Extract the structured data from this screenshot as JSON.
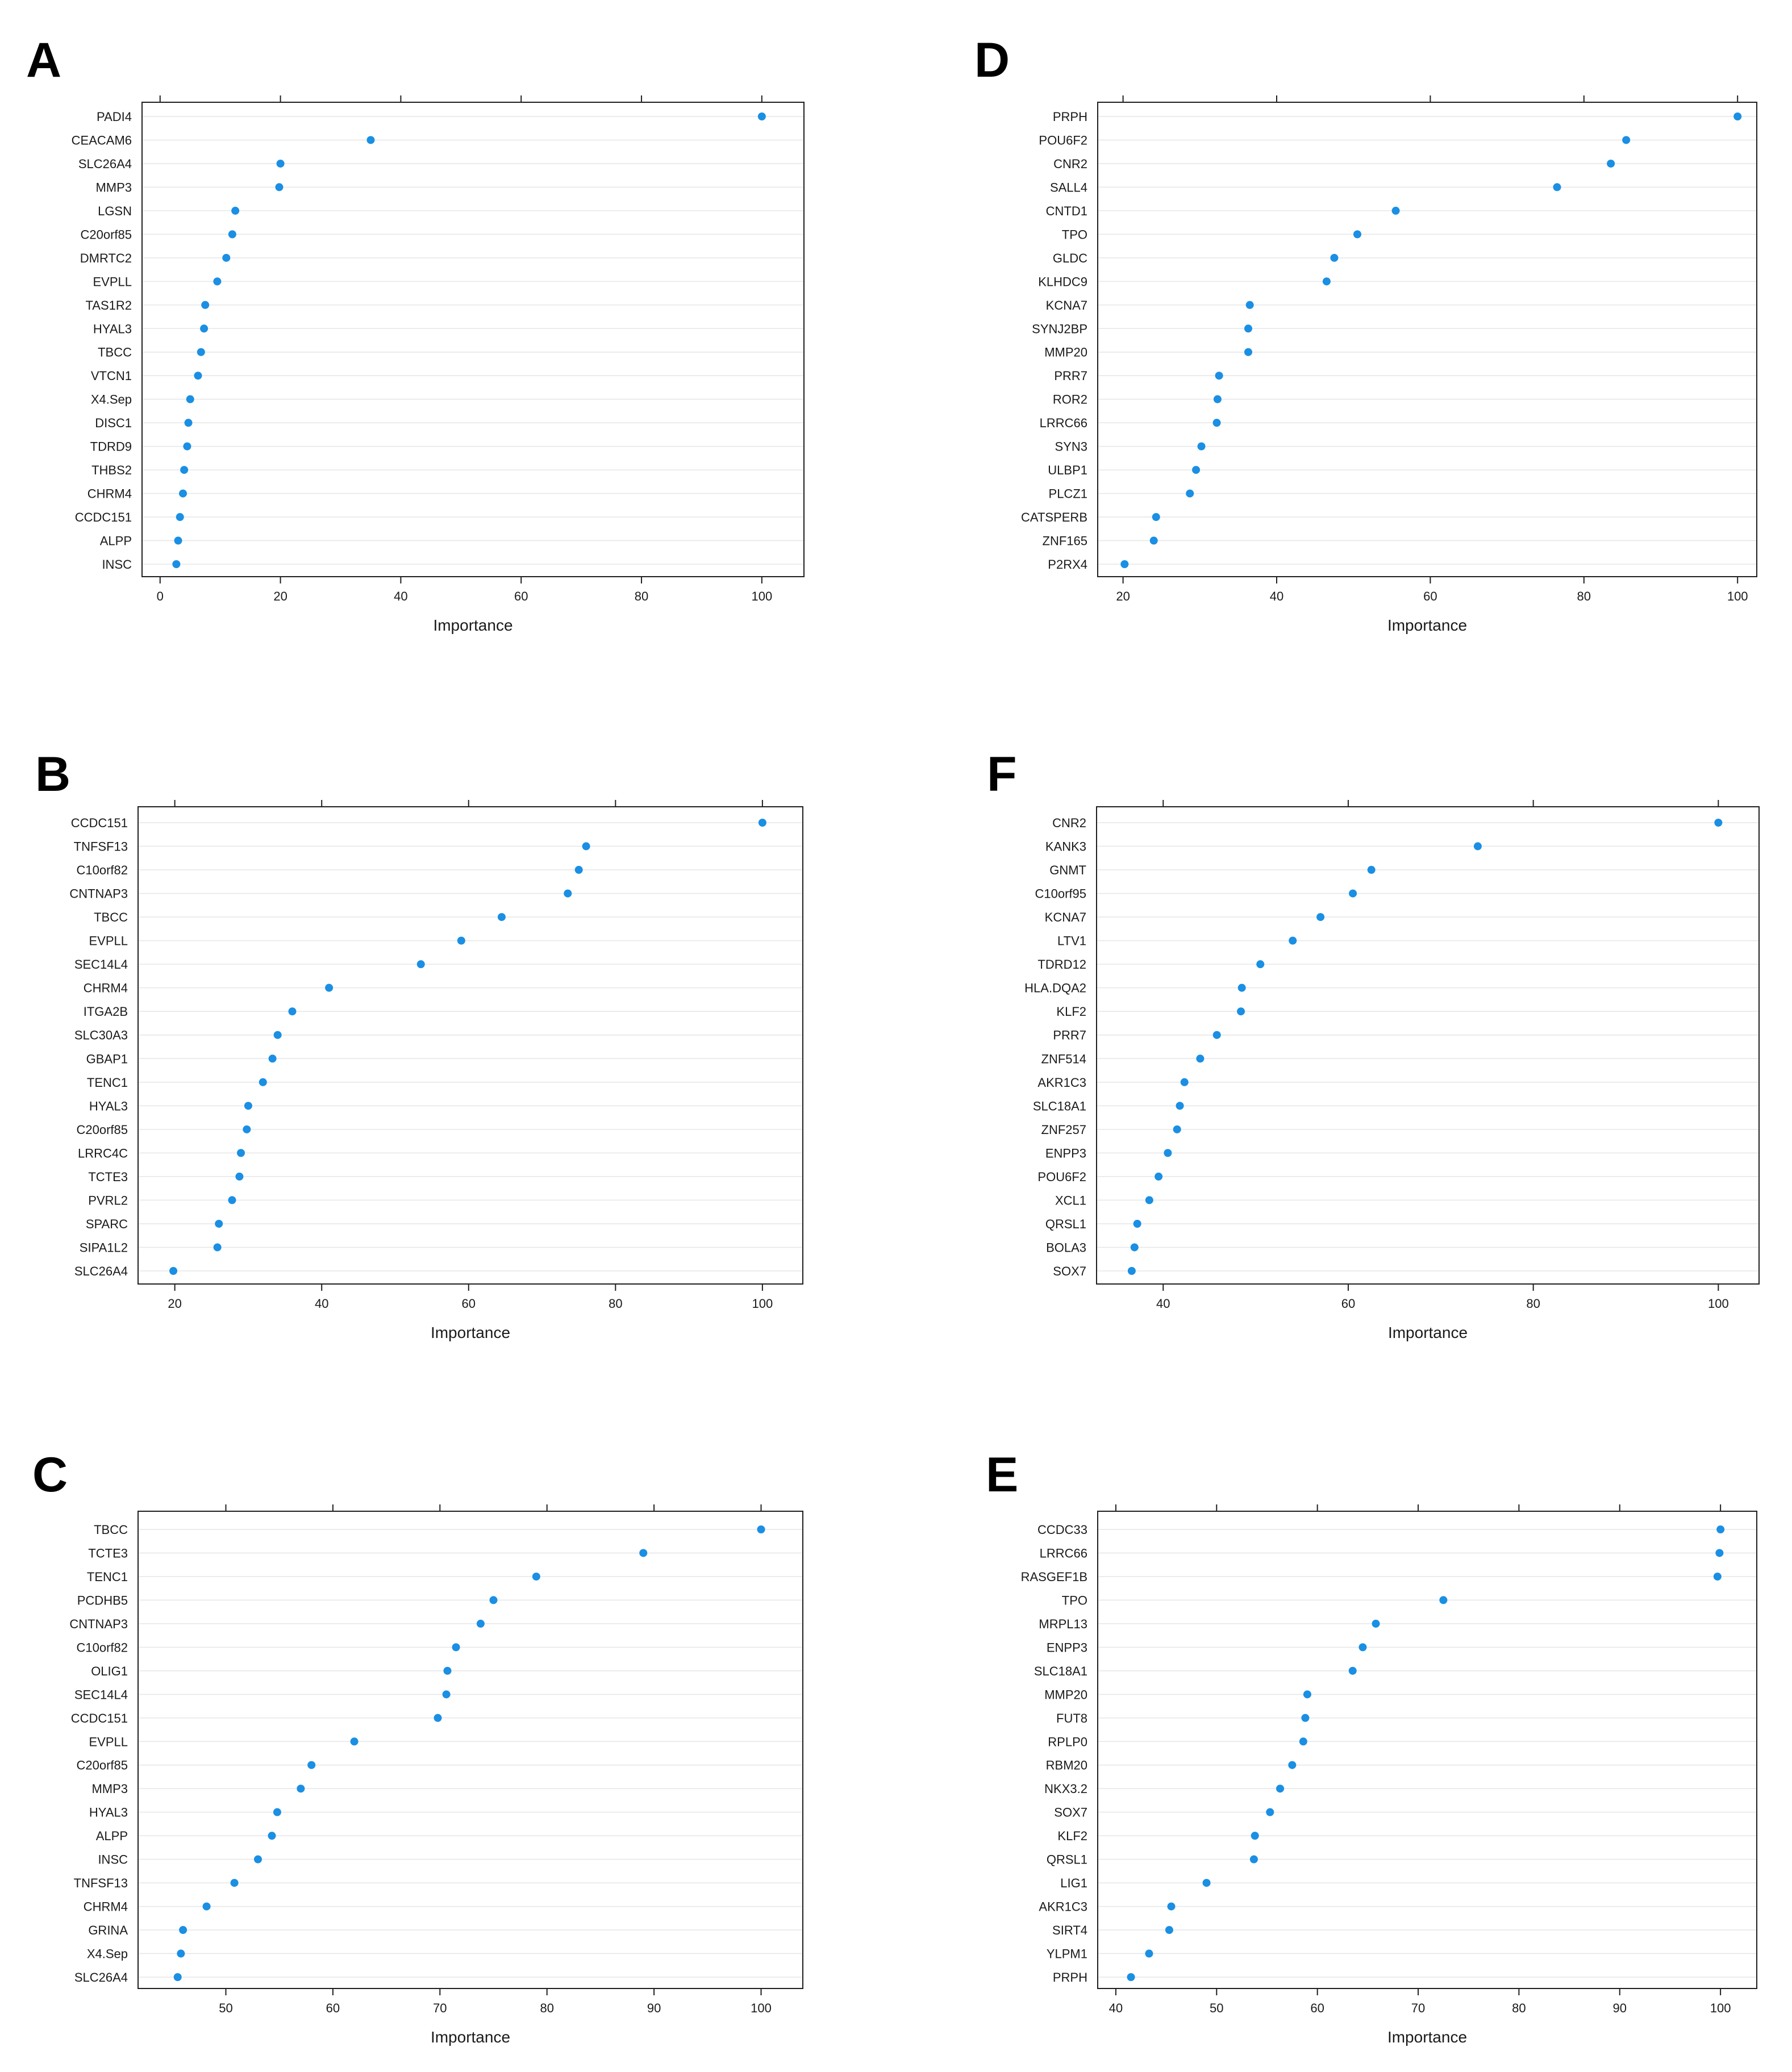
{
  "figure": {
    "dot_color": "#1a8fe3"
  },
  "chart_data": [
    {
      "panel": "A",
      "type": "scatter",
      "xlabel": "Importance",
      "xlim": [
        -3,
        107
      ],
      "xticks": [
        0,
        20,
        40,
        60,
        80,
        100
      ],
      "genes": [
        "PADI4",
        "CEACAM6",
        "SLC26A4",
        "MMP3",
        "LGSN",
        "C20orf85",
        "DMRTC2",
        "EVPLL",
        "TAS1R2",
        "HYAL3",
        "TBCC",
        "VTCN1",
        "X4.Sep",
        "DISC1",
        "TDRD9",
        "THBS2",
        "CHRM4",
        "CCDC151",
        "ALPP",
        "INSC"
      ],
      "values": [
        100,
        35,
        20,
        19.8,
        12.5,
        12,
        11,
        9.5,
        7.5,
        7.3,
        6.8,
        6.3,
        5,
        4.7,
        4.5,
        4,
        3.8,
        3.3,
        3,
        2.7
      ]
    },
    {
      "panel": "D",
      "type": "scatter",
      "xlabel": "Importance",
      "xlim": [
        16.7,
        102.5
      ],
      "xticks": [
        20,
        40,
        60,
        80,
        100
      ],
      "genes": [
        "PRPH",
        "POU6F2",
        "CNR2",
        "SALL4",
        "CNTD1",
        "TPO",
        "GLDC",
        "KLHDC9",
        "KCNA7",
        "SYNJ2BP",
        "MMP20",
        "PRR7",
        "ROR2",
        "LRRC66",
        "SYN3",
        "ULBP1",
        "PLCZ1",
        "CATSPERB",
        "ZNF165",
        "P2RX4"
      ],
      "values": [
        100,
        85.5,
        83.5,
        76.5,
        55.5,
        50.5,
        47.5,
        46.5,
        36.5,
        36.3,
        36.3,
        32.5,
        32.3,
        32.2,
        30.2,
        29.5,
        28.7,
        24.3,
        24,
        20.2
      ]
    },
    {
      "panel": "B",
      "type": "scatter",
      "xlabel": "Importance",
      "xlim": [
        15,
        105.5
      ],
      "xticks": [
        20,
        40,
        60,
        80,
        100
      ],
      "genes": [
        "CCDC151",
        "TNFSF13",
        "C10orf82",
        "CNTNAP3",
        "TBCC",
        "EVPLL",
        "SEC14L4",
        "CHRM4",
        "ITGA2B",
        "SLC30A3",
        "GBAP1",
        "TENC1",
        "HYAL3",
        "C20orf85",
        "LRRC4C",
        "TCTE3",
        "PVRL2",
        "SPARC",
        "SIPA1L2",
        "SLC26A4"
      ],
      "values": [
        100,
        76,
        75,
        73.5,
        64.5,
        59,
        53.5,
        41,
        36,
        34,
        33.3,
        32,
        30,
        29.8,
        29,
        28.8,
        27.8,
        26,
        25.8,
        19.8
      ]
    },
    {
      "panel": "F",
      "type": "scatter",
      "xlabel": "Importance",
      "xlim": [
        32.8,
        104.4
      ],
      "xticks": [
        40,
        60,
        80,
        100
      ],
      "genes": [
        "CNR2",
        "KANK3",
        "GNMT",
        "C10orf95",
        "KCNA7",
        "LTV1",
        "TDRD12",
        "HLA.DQA2",
        "KLF2",
        "PRR7",
        "ZNF514",
        "AKR1C3",
        "SLC18A1",
        "ZNF257",
        "ENPP3",
        "POU6F2",
        "XCL1",
        "QRSL1",
        "BOLA3",
        "SOX7"
      ],
      "values": [
        100,
        74,
        62.5,
        60.5,
        57,
        54,
        50.5,
        48.5,
        48.4,
        45.8,
        44,
        42.3,
        41.8,
        41.5,
        40.5,
        39.5,
        38.5,
        37.2,
        36.9,
        36.6
      ]
    },
    {
      "panel": "C",
      "type": "scatter",
      "xlabel": "Importance",
      "xlim": [
        41.8,
        103.9
      ],
      "xticks": [
        50,
        60,
        70,
        80,
        90,
        100
      ],
      "genes": [
        "TBCC",
        "TCTE3",
        "TENC1",
        "PCDHB5",
        "CNTNAP3",
        "C10orf82",
        "OLIG1",
        "SEC14L4",
        "CCDC151",
        "EVPLL",
        "C20orf85",
        "MMP3",
        "HYAL3",
        "ALPP",
        "INSC",
        "TNFSF13",
        "CHRM4",
        "GRINA",
        "X4.Sep",
        "SLC26A4"
      ],
      "values": [
        100,
        89,
        79,
        75,
        73.8,
        71.5,
        70.7,
        70.6,
        69.8,
        62,
        58,
        57,
        54.8,
        54.3,
        53,
        50.8,
        48.2,
        46,
        45.8,
        45.5
      ]
    },
    {
      "panel": "E",
      "type": "scatter",
      "xlabel": "Importance",
      "xlim": [
        38.2,
        103.6
      ],
      "xticks": [
        40,
        50,
        60,
        70,
        80,
        90,
        100
      ],
      "genes": [
        "CCDC33",
        "LRRC66",
        "RASGEF1B",
        "TPO",
        "MRPL13",
        "ENPP3",
        "SLC18A1",
        "MMP20",
        "FUT8",
        "RPLP0",
        "RBM20",
        "NKX3.2",
        "SOX7",
        "KLF2",
        "QRSL1",
        "LIG1",
        "AKR1C3",
        "SIRT4",
        "YLPM1",
        "PRPH"
      ],
      "values": [
        100,
        99.9,
        99.7,
        72.5,
        65.8,
        64.5,
        63.5,
        59,
        58.8,
        58.6,
        57.5,
        56.3,
        55.3,
        53.8,
        53.7,
        49,
        45.5,
        45.3,
        43.3,
        41.5
      ]
    }
  ]
}
